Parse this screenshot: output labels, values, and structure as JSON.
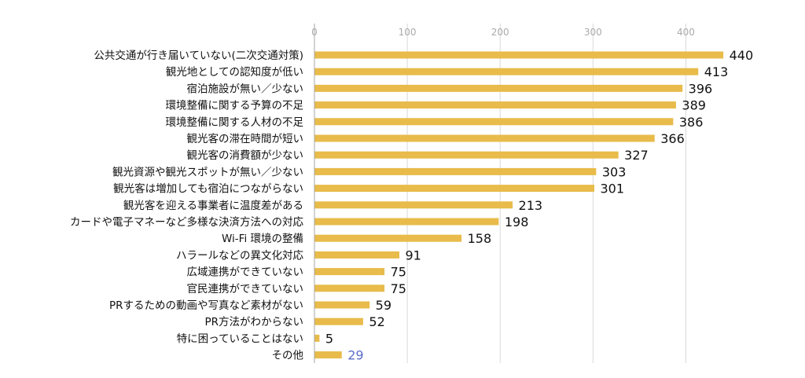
{
  "chart_data": {
    "type": "bar",
    "orientation": "horizontal",
    "xlim": [
      0,
      450
    ],
    "x_ticks": [
      "0",
      "100",
      "200",
      "300",
      "400"
    ],
    "grid": true,
    "bar_color": "#e8bb4a",
    "categories": [
      "公共交通が行き届いていない(二次交通対策)",
      "観光地としての認知度が低い",
      "宿泊施設が無い／少ない",
      "環境整備に関する予算の不足",
      "環境整備に関する人材の不足",
      "観光客の滞在時間が短い",
      "観光客の消費額が少ない",
      "観光資源や観光スポットが無い／少ない",
      "観光客は増加しても宿泊につながらない",
      "観光客を迎える事業者に温度差がある",
      "カードや電子マネーなど多様な決済方法への対応",
      "Wi-Fi 環境の整備",
      "ハラールなどの異文化対応",
      "広域連携ができていない",
      "官民連携ができていない",
      "PRするための動画や写真など素材がない",
      "PR方法がわからない",
      "特に困っていることはない",
      "その他"
    ],
    "values": [
      440,
      413,
      396,
      389,
      386,
      366,
      327,
      303,
      301,
      213,
      198,
      158,
      91,
      75,
      75,
      59,
      52,
      5,
      29
    ],
    "value_labels": [
      "440",
      "413",
      "396",
      "389",
      "386",
      "366",
      "327",
      "303",
      "301",
      "213",
      "198",
      "158",
      "91",
      "75",
      "75",
      "59",
      "52",
      "5",
      "29"
    ],
    "label_colors": {
      "default": "#111111",
      "その他": "#5b6ec8"
    },
    "tick_color": "#aaaaaa",
    "grid_color": "#d9d9d9",
    "axis_color": "#a6a6a6"
  }
}
